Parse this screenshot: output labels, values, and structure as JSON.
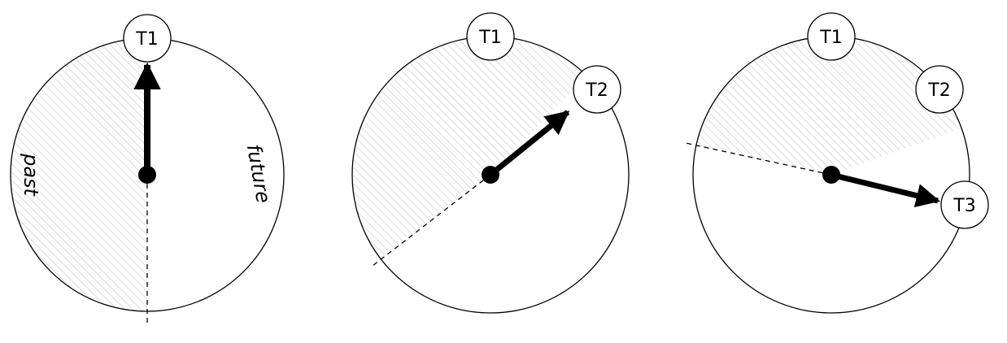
{
  "hatch_color": "#d2d2d2",
  "stroke_color": "#000000",
  "background_color": "#ffffff",
  "labels": {
    "past": "past",
    "future": "future"
  },
  "panels": [
    {
      "timepoints": [
        {
          "label": "T1"
        }
      ],
      "hand_points_to": "T1"
    },
    {
      "timepoints": [
        {
          "label": "T1"
        },
        {
          "label": "T2"
        }
      ],
      "hand_points_to": "T2"
    },
    {
      "timepoints": [
        {
          "label": "T1"
        },
        {
          "label": "T2"
        },
        {
          "label": "T3"
        }
      ],
      "hand_points_to": "T3"
    }
  ]
}
